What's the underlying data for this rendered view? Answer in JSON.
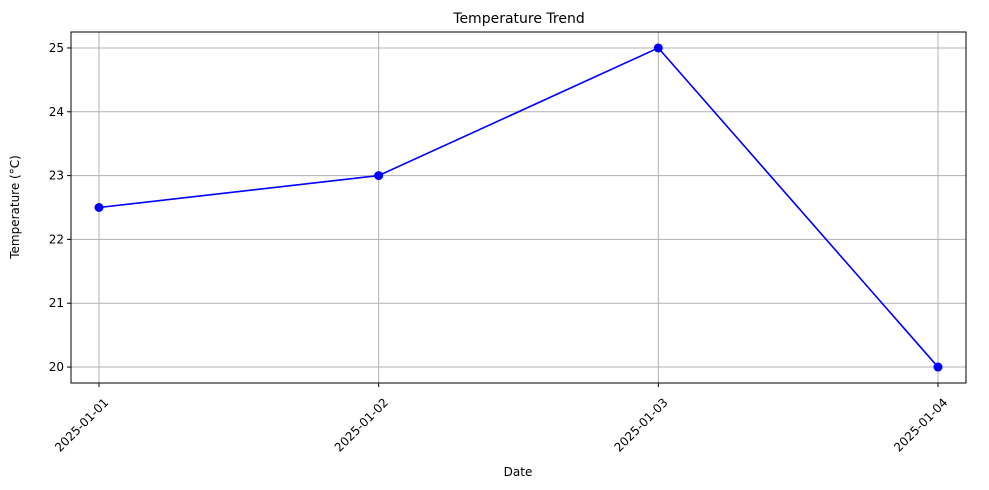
{
  "chart_data": {
    "type": "line",
    "title": "Temperature Trend",
    "xlabel": "Date",
    "ylabel": "Temperature (°C)",
    "categories": [
      "2025-01-01",
      "2025-01-02",
      "2025-01-03",
      "2025-01-04"
    ],
    "series": [
      {
        "values": [
          22.5,
          23.0,
          25.0,
          20.0
        ],
        "color": "#0000ff",
        "marker": "circle"
      }
    ],
    "ylim": [
      19.75,
      25.25
    ],
    "yticks": [
      20,
      21,
      22,
      23,
      24,
      25
    ],
    "grid": true,
    "legend": "none"
  }
}
